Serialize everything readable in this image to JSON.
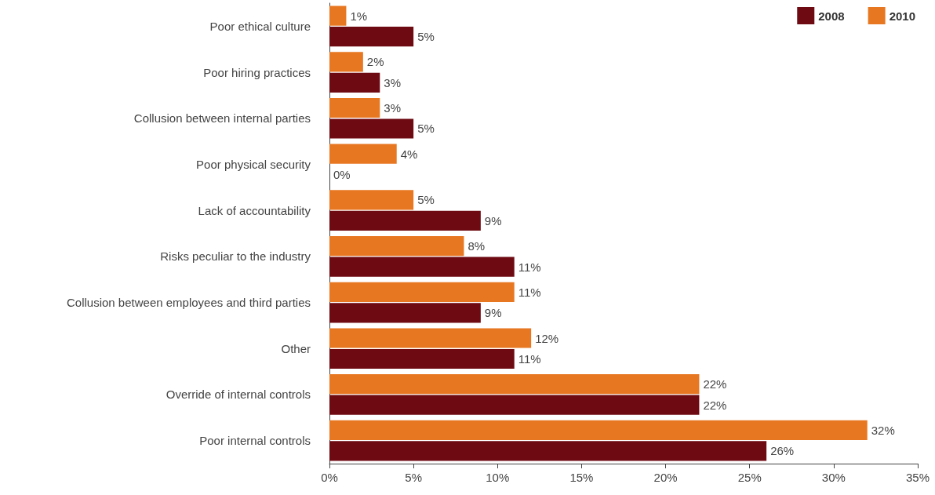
{
  "chart_data": {
    "type": "bar",
    "orientation": "horizontal",
    "categories": [
      "Poor ethical culture",
      "Poor hiring practices",
      "Collusion between internal parties",
      "Poor physical security",
      "Lack of accountability",
      "Risks peculiar to the industry",
      "Collusion between employees and third parties",
      "Other",
      "Override of internal controls",
      "Poor internal controls"
    ],
    "series": [
      {
        "name": "2010",
        "color": "#e87722",
        "values": [
          1,
          2,
          3,
          4,
          5,
          8,
          11,
          12,
          22,
          32
        ],
        "value_labels": [
          "1%",
          "2%",
          "3%",
          "4%",
          "5%",
          "8%",
          "11%",
          "12%",
          "22%",
          "32%"
        ]
      },
      {
        "name": "2008",
        "color": "#6e0a12",
        "values": [
          5,
          3,
          5,
          0,
          9,
          11,
          9,
          11,
          22,
          26
        ],
        "value_labels": [
          "5%",
          "3%",
          "5%",
          "0%",
          "9%",
          "11%",
          "9%",
          "11%",
          "22%",
          "26%"
        ]
      }
    ],
    "xlim": [
      0,
      35
    ],
    "xticks": [
      {
        "value": 0,
        "label": "0%"
      },
      {
        "value": 5,
        "label": "5%"
      },
      {
        "value": 10,
        "label": "10%"
      },
      {
        "value": 15,
        "label": "15%"
      },
      {
        "value": 20,
        "label": "20%"
      },
      {
        "value": 25,
        "label": "25%"
      },
      {
        "value": 30,
        "label": "30%"
      },
      {
        "value": 35,
        "label": "35%"
      }
    ],
    "grid": false,
    "legend": "top right"
  }
}
